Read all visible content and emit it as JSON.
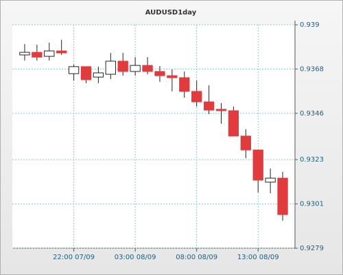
{
  "chart_data": {
    "type": "candlestick",
    "title": "AUDUSD1day",
    "categories": [
      null,
      null,
      null,
      null,
      "22:00 07/09",
      null,
      null,
      null,
      null,
      "03:00 08/09",
      null,
      null,
      null,
      null,
      "08:00 08/09",
      null,
      null,
      null,
      null,
      "13:00 08/09",
      null,
      null
    ],
    "open": [
      0.9375,
      0.93763,
      0.93743,
      0.9377,
      0.93657,
      0.93692,
      0.9364,
      0.93654,
      0.93719,
      0.93668,
      0.93698,
      0.93668,
      0.93647,
      0.93637,
      0.93569,
      0.93517,
      0.9348,
      0.93473,
      0.93347,
      0.93278,
      0.93118,
      0.93138
    ],
    "high": [
      0.93804,
      0.93801,
      0.93811,
      0.93825,
      0.93702,
      0.93692,
      0.93692,
      0.9376,
      0.9376,
      0.93739,
      0.93739,
      0.93695,
      0.93678,
      0.93668,
      0.93623,
      0.93599,
      0.93511,
      0.93494,
      0.93381,
      0.93278,
      0.93186,
      0.93169
    ],
    "low": [
      0.93722,
      0.93722,
      0.93722,
      0.9375,
      0.93623,
      0.9361,
      0.9361,
      0.9363,
      0.93647,
      0.93647,
      0.93654,
      0.93616,
      0.93569,
      0.93538,
      0.93494,
      0.93456,
      0.93408,
      0.93347,
      0.93237,
      0.93067,
      0.93063,
      0.92927
    ],
    "close": [
      0.93763,
      0.93739,
      0.9377,
      0.9376,
      0.93692,
      0.93627,
      0.93661,
      0.93719,
      0.93668,
      0.93698,
      0.93668,
      0.93647,
      0.93637,
      0.93569,
      0.93517,
      0.93476,
      0.93473,
      0.93347,
      0.93278,
      0.93128,
      0.93138,
      0.92957
    ],
    "colors": {
      "up": "#ffffff",
      "down": "#e23b3e"
    },
    "ylim": [
      0.9279,
      0.939
    ],
    "yticks": [
      0.9279,
      0.9301,
      0.9323,
      0.9346,
      0.9368,
      0.939
    ],
    "grid": true
  }
}
